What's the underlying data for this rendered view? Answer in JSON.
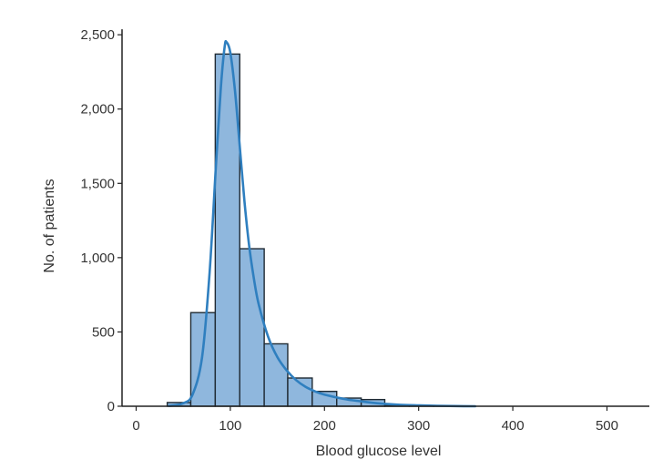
{
  "chart_data": {
    "type": "bar",
    "subtype": "histogram",
    "title": "",
    "xlabel": "Blood glucose level",
    "ylabel": "No. of patients",
    "xlim": [
      -15,
      545
    ],
    "ylim": [
      0,
      2550
    ],
    "x_ticks": [
      0,
      100,
      200,
      300,
      400,
      500
    ],
    "x_tick_labels": [
      "0",
      "100",
      "200",
      "300",
      "400",
      "500"
    ],
    "y_ticks": [
      0,
      500,
      1000,
      1500,
      2000,
      2500
    ],
    "y_tick_labels": [
      "0",
      "500",
      "1,000",
      "1,500",
      "2,000",
      "2,500"
    ],
    "grid": false,
    "bin_width": 25,
    "bins": [
      {
        "start": 33,
        "end": 58,
        "count": 25
      },
      {
        "start": 58,
        "end": 84,
        "count": 630
      },
      {
        "start": 84,
        "end": 110,
        "count": 2370
      },
      {
        "start": 110,
        "end": 136,
        "count": 1060
      },
      {
        "start": 136,
        "end": 161,
        "count": 420
      },
      {
        "start": 161,
        "end": 187,
        "count": 190
      },
      {
        "start": 187,
        "end": 213,
        "count": 100
      },
      {
        "start": 213,
        "end": 239,
        "count": 55
      },
      {
        "start": 239,
        "end": 264,
        "count": 45
      },
      {
        "start": 264,
        "end": 290,
        "count": 8
      },
      {
        "start": 290,
        "end": 316,
        "count": 4
      },
      {
        "start": 316,
        "end": 342,
        "count": 2
      }
    ],
    "density_curve": {
      "color": "#2f7fbf",
      "points": [
        [
          35,
          2
        ],
        [
          50,
          20
        ],
        [
          60,
          80
        ],
        [
          70,
          330
        ],
        [
          78,
          900
        ],
        [
          85,
          1650
        ],
        [
          90,
          2150
        ],
        [
          94,
          2420
        ],
        [
          96,
          2450
        ],
        [
          100,
          2380
        ],
        [
          105,
          2120
        ],
        [
          110,
          1750
        ],
        [
          115,
          1380
        ],
        [
          120,
          1080
        ],
        [
          125,
          860
        ],
        [
          130,
          690
        ],
        [
          140,
          470
        ],
        [
          150,
          330
        ],
        [
          160,
          240
        ],
        [
          170,
          175
        ],
        [
          180,
          130
        ],
        [
          190,
          100
        ],
        [
          200,
          78
        ],
        [
          220,
          50
        ],
        [
          240,
          32
        ],
        [
          260,
          18
        ],
        [
          280,
          10
        ],
        [
          300,
          6
        ],
        [
          320,
          3
        ],
        [
          340,
          1
        ],
        [
          360,
          0
        ]
      ]
    },
    "bar_color": "#8fb7dd",
    "edge_color": "#1f2a33"
  }
}
